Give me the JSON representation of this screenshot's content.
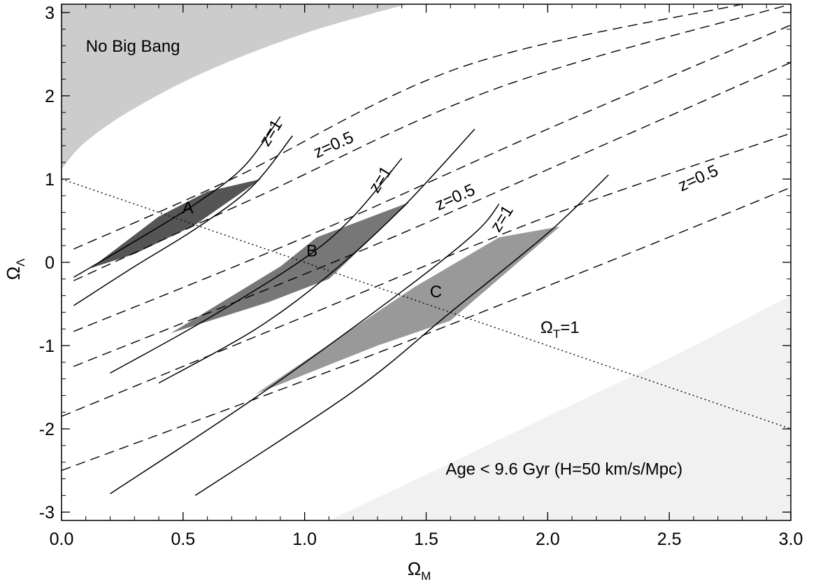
{
  "chart_data": {
    "type": "line",
    "xlabel": "Ω",
    "xlabel_sub": "M",
    "ylabel": "Ω",
    "ylabel_sub": "Λ",
    "xlim": [
      0.0,
      3.0
    ],
    "ylim": [
      -3.1,
      3.1
    ],
    "xticks": [
      "0.0",
      "0.5",
      "1.0",
      "1.5",
      "2.0",
      "2.5",
      "3.0"
    ],
    "xtick_values": [
      0.0,
      0.5,
      1.0,
      1.5,
      2.0,
      2.5,
      3.0
    ],
    "yticks": [
      "-3",
      "-2",
      "-1",
      "0",
      "1",
      "2",
      "3"
    ],
    "ytick_values": [
      -3,
      -2,
      -1,
      0,
      1,
      2,
      3
    ],
    "regions": {
      "no_big_bang": {
        "label": "No Big Bang",
        "color": "#cccccc",
        "boundary": [
          [
            0.0,
            1.12
          ],
          [
            0.1,
            1.45
          ],
          [
            0.3,
            1.85
          ],
          [
            0.6,
            2.3
          ],
          [
            1.0,
            2.75
          ],
          [
            1.42,
            3.1
          ]
        ]
      },
      "age": {
        "label": "Age < 9.6 Gyr (H=50 km/s/Mpc)",
        "color": "#f1f1f1",
        "boundary": [
          [
            1.1,
            -3.1
          ],
          [
            1.5,
            -2.55
          ],
          [
            2.0,
            -1.85
          ],
          [
            2.5,
            -1.15
          ],
          [
            3.0,
            -0.4
          ]
        ]
      }
    },
    "omega_t_line": {
      "label": "Ω",
      "label_sub": "T",
      "label_suffix": "=1",
      "points": [
        [
          0.0,
          1.0
        ],
        [
          3.0,
          -2.0
        ]
      ]
    },
    "solid_pairs": [
      {
        "left": [
          [
            0.05,
            -0.18
          ],
          [
            0.3,
            0.25
          ],
          [
            0.55,
            0.7
          ],
          [
            0.75,
            1.15
          ],
          [
            0.9,
            1.75
          ]
        ],
        "right": [
          [
            0.05,
            -0.52
          ],
          [
            0.3,
            -0.05
          ],
          [
            0.55,
            0.4
          ],
          [
            0.78,
            0.9
          ],
          [
            0.95,
            1.52
          ]
        ],
        "label": "z=1"
      },
      {
        "left": [
          [
            0.2,
            -1.33
          ],
          [
            0.6,
            -0.68
          ],
          [
            1.0,
            0.05
          ],
          [
            1.2,
            0.55
          ],
          [
            1.4,
            1.25
          ]
        ],
        "right": [
          [
            0.4,
            -1.45
          ],
          [
            0.8,
            -0.8
          ],
          [
            1.1,
            -0.15
          ],
          [
            1.4,
            0.65
          ],
          [
            1.7,
            1.6
          ]
        ],
        "label": "z=1"
      },
      {
        "left": [
          [
            0.2,
            -2.78
          ],
          [
            0.8,
            -1.62
          ],
          [
            1.4,
            -0.35
          ],
          [
            1.7,
            0.35
          ],
          [
            1.8,
            0.7
          ]
        ],
        "right": [
          [
            0.55,
            -2.8
          ],
          [
            1.2,
            -1.55
          ],
          [
            1.6,
            -0.6
          ],
          [
            2.0,
            0.35
          ],
          [
            2.25,
            1.05
          ]
        ],
        "label": "z=1"
      }
    ],
    "dashed_lines": [
      [
        [
          0.05,
          0.16
        ],
        [
          0.7,
          1.0
        ],
        [
          1.65,
          2.35
        ],
        [
          2.8,
          3.1
        ]
      ],
      [
        [
          0.05,
          -0.22
        ],
        [
          0.8,
          0.78
        ],
        [
          1.8,
          2.1
        ],
        [
          3.0,
          3.1
        ]
      ],
      [
        [
          0.05,
          -0.83
        ],
        [
          1.0,
          0.3
        ],
        [
          2.0,
          1.6
        ],
        [
          3.0,
          2.85
        ]
      ],
      [
        [
          0.05,
          -1.25
        ],
        [
          1.2,
          0.1
        ],
        [
          2.3,
          1.5
        ],
        [
          3.0,
          2.4
        ]
      ],
      [
        [
          0.0,
          -1.85
        ],
        [
          1.0,
          -0.65
        ],
        [
          2.0,
          0.55
        ],
        [
          3.0,
          1.55
        ]
      ],
      [
        [
          0.0,
          -2.5
        ],
        [
          1.2,
          -1.2
        ],
        [
          2.2,
          -0.05
        ],
        [
          3.0,
          0.9
        ]
      ]
    ],
    "shaded_regions": [
      {
        "label": "A",
        "label_pos": [
          0.52,
          0.59
        ],
        "color": "#555555",
        "upper": [
          [
            0.12,
            -0.07
          ],
          [
            0.4,
            0.55
          ],
          [
            0.6,
            0.85
          ],
          [
            0.82,
            1.0
          ]
        ],
        "lower": [
          [
            0.12,
            -0.07
          ],
          [
            0.3,
            0.1
          ],
          [
            0.55,
            0.45
          ],
          [
            0.82,
            1.0
          ]
        ]
      },
      {
        "label": "B",
        "label_pos": [
          1.03,
          0.07
        ],
        "color": "#777777",
        "upper": [
          [
            0.45,
            -0.85
          ],
          [
            0.9,
            -0.05
          ],
          [
            1.05,
            0.3
          ],
          [
            1.43,
            0.72
          ]
        ],
        "lower": [
          [
            0.45,
            -0.85
          ],
          [
            0.85,
            -0.48
          ],
          [
            1.1,
            -0.2
          ],
          [
            1.43,
            0.72
          ]
        ]
      },
      {
        "label": "C",
        "label_pos": [
          1.54,
          -0.42
        ],
        "color": "#999999",
        "upper": [
          [
            0.8,
            -1.58
          ],
          [
            1.45,
            -0.3
          ],
          [
            1.8,
            0.3
          ],
          [
            2.05,
            0.43
          ]
        ],
        "lower": [
          [
            0.8,
            -1.58
          ],
          [
            1.3,
            -1.0
          ],
          [
            1.6,
            -0.7
          ],
          [
            2.05,
            0.43
          ]
        ]
      }
    ],
    "annotations": [
      {
        "text": "z=1",
        "x": 0.85,
        "y": 1.38,
        "rotate": -58
      },
      {
        "text": "z=0.5",
        "x": 1.05,
        "y": 1.25,
        "rotate": -24
      },
      {
        "text": "z=1",
        "x": 1.3,
        "y": 0.82,
        "rotate": -58
      },
      {
        "text": "z=0.5",
        "x": 1.55,
        "y": 0.62,
        "rotate": -24
      },
      {
        "text": "z=1",
        "x": 1.8,
        "y": 0.35,
        "rotate": -58
      },
      {
        "text": "z=0.5",
        "x": 2.55,
        "y": 0.85,
        "rotate": -24
      }
    ],
    "grid": false,
    "legend": "none"
  }
}
